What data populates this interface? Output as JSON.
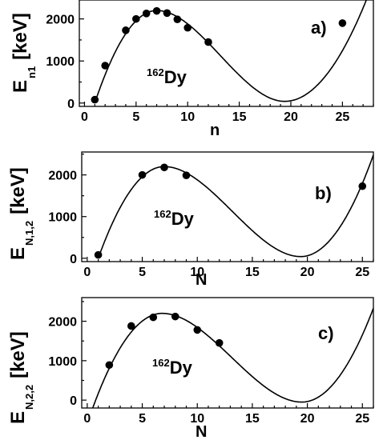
{
  "chart_data": [
    {
      "type": "scatter",
      "tag": "a)",
      "nucleus": {
        "mass": "162",
        "symbol": "Dy"
      },
      "xlabel": "n",
      "ylabel": {
        "main": "E",
        "sub": "n1",
        "unit": "[keV]"
      },
      "xlim": [
        -0.5,
        28
      ],
      "ylim": [
        -80,
        2450
      ],
      "xticks": [
        0,
        5,
        10,
        15,
        20,
        25
      ],
      "yticks": [
        0,
        1000,
        2000
      ],
      "points": [
        [
          1,
          80
        ],
        [
          2,
          890
        ],
        [
          4,
          1730
        ],
        [
          5,
          2000
        ],
        [
          6,
          2130
        ],
        [
          7,
          2190
        ],
        [
          8,
          2140
        ],
        [
          9,
          1990
        ],
        [
          10,
          1790
        ],
        [
          12,
          1450
        ],
        [
          25,
          1900
        ]
      ],
      "curve": {
        "x0": 1,
        "y0": 0,
        "peak_x": 7,
        "peak_y": 2200,
        "min_x": 19.4,
        "min_y": 40,
        "x1": 27.4,
        "y1": 2500
      }
    },
    {
      "type": "scatter",
      "tag": "b)",
      "nucleus": {
        "mass": "162",
        "symbol": "Dy"
      },
      "xlabel": "N",
      "ylabel": {
        "main": "E",
        "sub": "N,1,2",
        "unit": "[keV]"
      },
      "xlim": [
        -0.5,
        26
      ],
      "ylim": [
        -80,
        2550
      ],
      "xticks": [
        0,
        5,
        10,
        15,
        20,
        25
      ],
      "yticks": [
        0,
        1000,
        2000
      ],
      "points": [
        [
          1,
          80
        ],
        [
          5,
          2000
        ],
        [
          7,
          2180
        ],
        [
          9,
          1990
        ],
        [
          25,
          1730
        ]
      ],
      "curve": {
        "x0": 1,
        "y0": 0,
        "peak_x": 7,
        "peak_y": 2200,
        "min_x": 19.4,
        "min_y": 40,
        "x1": 26,
        "y1": 2480
      }
    },
    {
      "type": "scatter",
      "tag": "c)",
      "nucleus": {
        "mass": "162",
        "symbol": "Dy"
      },
      "xlabel": "N",
      "ylabel": {
        "main": "E",
        "sub": "N,2,2",
        "unit": "[keV]"
      },
      "xlim": [
        -0.5,
        26
      ],
      "ylim": [
        -200,
        2600
      ],
      "xticks": [
        0,
        5,
        10,
        15,
        20,
        25
      ],
      "yticks": [
        0,
        1000,
        2000
      ],
      "points": [
        [
          2,
          890
        ],
        [
          4,
          1880
        ],
        [
          6,
          2100
        ],
        [
          8,
          2120
        ],
        [
          10,
          1780
        ],
        [
          12,
          1450
        ]
      ],
      "curve": {
        "x0": 0.5,
        "y0": -200,
        "peak_x": 6.8,
        "peak_y": 2200,
        "min_x": 19.5,
        "min_y": -50,
        "x1": 26,
        "y1": 2330
      }
    }
  ]
}
